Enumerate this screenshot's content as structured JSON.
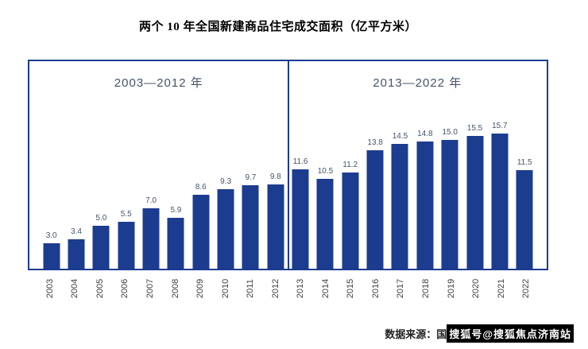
{
  "title": "两个 10 年全国新建商品住宅成交面积（亿平方米）",
  "periods": {
    "left": "2003—2012 年",
    "right": "2013—2022 年"
  },
  "colors": {
    "bar": "#1C3C8F",
    "box_border": "#1C3C8F",
    "value_label": "#44546A"
  },
  "chart_data": {
    "type": "bar",
    "title": "两个 10 年全国新建商品住宅成交面积（亿平方米）",
    "categories": [
      "2003",
      "2004",
      "2005",
      "2006",
      "2007",
      "2008",
      "2009",
      "2010",
      "2011",
      "2012",
      "2013",
      "2014",
      "2015",
      "2016",
      "2017",
      "2018",
      "2019",
      "2020",
      "2021",
      "2022"
    ],
    "values": [
      3.0,
      3.4,
      5.0,
      5.5,
      7.0,
      5.9,
      8.6,
      9.3,
      9.7,
      9.8,
      11.6,
      10.5,
      11.2,
      13.8,
      14.5,
      14.8,
      15.0,
      15.5,
      15.7,
      11.5
    ],
    "value_labels": [
      "3.0",
      "3.4",
      "5.0",
      "5.5",
      "7.0",
      "5.9",
      "8.6",
      "9.3",
      "9.7",
      "9.8",
      "11.6",
      "10.5",
      "11.2",
      "13.8",
      "14.5",
      "14.8",
      "15.0",
      "15.5",
      "15.7",
      "11.5"
    ],
    "group_annotations": [
      "2003—2012 年",
      "2013—2022 年"
    ],
    "xlabel": "",
    "ylabel": "",
    "ylim": [
      0,
      17
    ],
    "grid": false,
    "legend": false
  },
  "footer": {
    "source_prefix": "数据来源：国",
    "watermark": "搜狐号@搜狐焦点济南站"
  }
}
